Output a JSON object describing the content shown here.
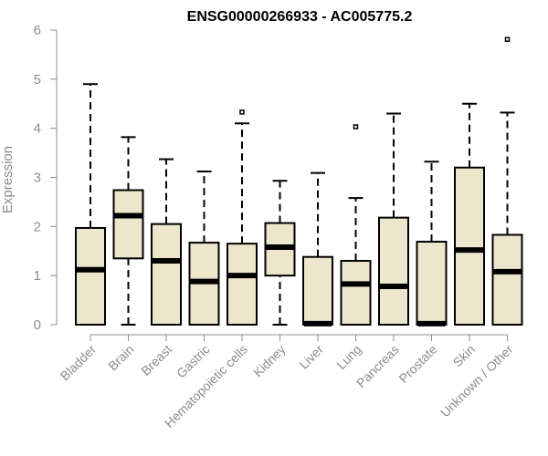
{
  "chart_data": {
    "type": "boxplot",
    "title": "ENSG00000266933 - AC005775.2",
    "ylabel": "Expression",
    "xlabel": "",
    "ylim": [
      0,
      6
    ],
    "yticks": [
      "0",
      "1",
      "2",
      "3",
      "4",
      "5",
      "6"
    ],
    "grid": false,
    "colors": {
      "box_fill": "#ede6cc",
      "box_stroke": "#000000",
      "axis": "#8c8c8c"
    },
    "categories": [
      "Bladder",
      "Brain",
      "Breast",
      "Gastric",
      "Hematopoietic cells",
      "Kidney",
      "Liver",
      "Lung",
      "Pancreas",
      "Prostate",
      "Skin",
      "Unknown / Other"
    ],
    "boxes": [
      {
        "whisker_low": 0,
        "q1": 0,
        "median": 1.12,
        "q3": 1.97,
        "whisker_high": 4.9,
        "outliers": []
      },
      {
        "whisker_low": 0,
        "q1": 1.35,
        "median": 2.22,
        "q3": 2.74,
        "whisker_high": 3.82,
        "outliers": []
      },
      {
        "whisker_low": 0,
        "q1": 0,
        "median": 1.3,
        "q3": 2.05,
        "whisker_high": 3.37,
        "outliers": []
      },
      {
        "whisker_low": 0,
        "q1": 0,
        "median": 0.88,
        "q3": 1.67,
        "whisker_high": 3.12,
        "outliers": []
      },
      {
        "whisker_low": 0,
        "q1": 0,
        "median": 1.0,
        "q3": 1.65,
        "whisker_high": 4.1,
        "outliers": [
          4.33
        ]
      },
      {
        "whisker_low": 0,
        "q1": 1.0,
        "median": 1.58,
        "q3": 2.07,
        "whisker_high": 2.93,
        "outliers": []
      },
      {
        "whisker_low": 0,
        "q1": 0,
        "median": 0.02,
        "q3": 1.38,
        "whisker_high": 3.09,
        "outliers": []
      },
      {
        "whisker_low": 0,
        "q1": 0,
        "median": 0.83,
        "q3": 1.3,
        "whisker_high": 2.58,
        "outliers": [
          4.03
        ]
      },
      {
        "whisker_low": 0,
        "q1": 0,
        "median": 0.78,
        "q3": 2.18,
        "whisker_high": 4.3,
        "outliers": []
      },
      {
        "whisker_low": 0,
        "q1": 0,
        "median": 0.02,
        "q3": 1.69,
        "whisker_high": 3.32,
        "outliers": []
      },
      {
        "whisker_low": 0,
        "q1": 0,
        "median": 1.52,
        "q3": 3.2,
        "whisker_high": 4.5,
        "outliers": []
      },
      {
        "whisker_low": 0,
        "q1": 0,
        "median": 1.08,
        "q3": 1.83,
        "whisker_high": 4.32,
        "outliers": [
          5.81
        ]
      }
    ]
  }
}
